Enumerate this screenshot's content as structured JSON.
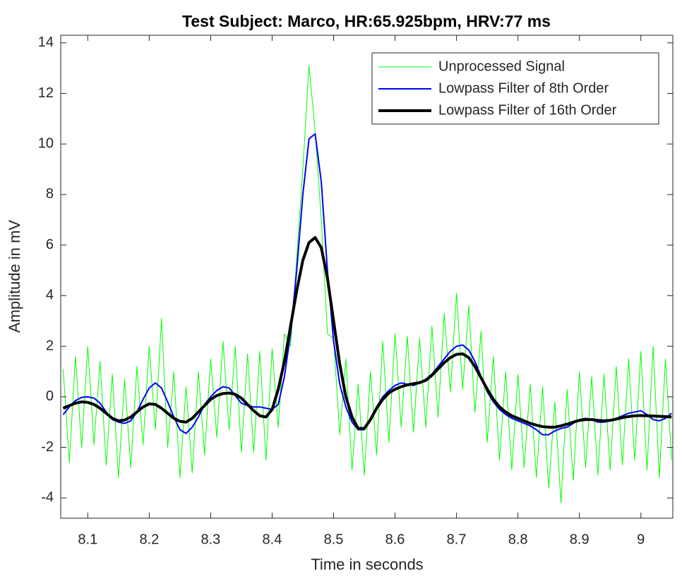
{
  "chart_data": {
    "type": "line",
    "title": "Test Subject: Marco, HR:65.925bpm, HRV:77 ms",
    "x_label": "Time in seconds",
    "y_label": "Amplitude in mV",
    "xlim": [
      8.056,
      9.052
    ],
    "ylim": [
      -4.8,
      14.3
    ],
    "xticks": [
      8.1,
      8.2,
      8.3,
      8.4,
      8.5,
      8.6,
      8.7,
      8.8,
      8.9,
      9
    ],
    "yticks": [
      -4,
      -2,
      0,
      2,
      4,
      6,
      8,
      10,
      12,
      14
    ],
    "grid": false,
    "legend": "northeast",
    "x": [
      8.06,
      8.07,
      8.08,
      8.09,
      8.1,
      8.11,
      8.12,
      8.13,
      8.14,
      8.15,
      8.16,
      8.17,
      8.18,
      8.19,
      8.2,
      8.21,
      8.22,
      8.23,
      8.24,
      8.25,
      8.26,
      8.27,
      8.28,
      8.29,
      8.3,
      8.31,
      8.32,
      8.33,
      8.34,
      8.35,
      8.36,
      8.37,
      8.38,
      8.39,
      8.4,
      8.41,
      8.42,
      8.43,
      8.44,
      8.45,
      8.46,
      8.47,
      8.48,
      8.49,
      8.5,
      8.51,
      8.52,
      8.53,
      8.54,
      8.55,
      8.56,
      8.57,
      8.58,
      8.59,
      8.6,
      8.61,
      8.62,
      8.63,
      8.64,
      8.65,
      8.66,
      8.67,
      8.68,
      8.69,
      8.7,
      8.71,
      8.72,
      8.73,
      8.74,
      8.75,
      8.76,
      8.77,
      8.78,
      8.79,
      8.8,
      8.81,
      8.82,
      8.83,
      8.84,
      8.85,
      8.86,
      8.87,
      8.88,
      8.89,
      8.9,
      8.91,
      8.92,
      8.93,
      8.94,
      8.95,
      8.96,
      8.97,
      8.98,
      8.99,
      9.0,
      9.01,
      9.02,
      9.03,
      9.04,
      9.05
    ],
    "series": [
      {
        "name": "Unprocessed Signal",
        "color": "#00ff00",
        "linewidth": 1,
        "values": [
          1.1,
          -2.6,
          1.6,
          -2.0,
          2.0,
          -1.9,
          1.4,
          -2.7,
          0.9,
          -3.2,
          0.7,
          -2.8,
          1.2,
          -1.9,
          2.0,
          -1.3,
          3.1,
          -2.0,
          1.0,
          -3.2,
          0.4,
          -3.0,
          1.0,
          -2.3,
          1.5,
          -1.6,
          2.2,
          -1.3,
          2.0,
          -2.2,
          1.7,
          -2.2,
          1.8,
          -2.5,
          1.9,
          -1.2,
          2.5,
          2.0,
          5.5,
          9.0,
          13.1,
          10.5,
          7.0,
          2.5,
          2.3,
          -1.5,
          1.5,
          -2.9,
          0.5,
          -3.1,
          1.0,
          -2.3,
          2.2,
          -1.8,
          2.5,
          -1.2,
          2.4,
          -1.4,
          2.3,
          -1.2,
          2.8,
          -0.8,
          3.3,
          0.2,
          4.1,
          0.3,
          3.6,
          -0.6,
          2.6,
          -1.8,
          1.6,
          -2.5,
          1.0,
          -2.9,
          0.9,
          -2.8,
          0.5,
          -3.2,
          0.4,
          -3.6,
          -0.2,
          -4.2,
          0.3,
          -3.3,
          1.0,
          -2.8,
          0.8,
          -3.1,
          0.9,
          -2.9,
          1.2,
          -2.7,
          1.5,
          -2.5,
          1.8,
          -2.9,
          2.0,
          -3.2,
          1.5,
          -2.5
        ]
      },
      {
        "name": "Lowpass Filter of 8th Order",
        "color": "#0000ff",
        "linewidth": 2,
        "values": [
          -0.7,
          -0.4,
          -0.15,
          -0.02,
          0.0,
          -0.05,
          -0.25,
          -0.6,
          -0.9,
          -1.0,
          -1.05,
          -0.95,
          -0.6,
          -0.1,
          0.35,
          0.55,
          0.35,
          -0.2,
          -0.8,
          -1.3,
          -1.45,
          -1.2,
          -0.8,
          -0.3,
          0.0,
          0.25,
          0.4,
          0.35,
          0.05,
          -0.25,
          -0.35,
          -0.4,
          -0.4,
          -0.45,
          -0.5,
          -0.3,
          0.8,
          2.5,
          5.0,
          8.0,
          10.2,
          10.4,
          8.5,
          5.0,
          2.2,
          0.5,
          -0.4,
          -1.0,
          -1.3,
          -1.3,
          -0.9,
          -0.4,
          0.0,
          0.25,
          0.45,
          0.55,
          0.5,
          0.45,
          0.55,
          0.7,
          0.9,
          1.2,
          1.5,
          1.8,
          2.0,
          2.05,
          1.85,
          1.4,
          0.8,
          0.2,
          -0.2,
          -0.5,
          -0.7,
          -0.85,
          -0.95,
          -1.05,
          -1.15,
          -1.3,
          -1.5,
          -1.5,
          -1.35,
          -1.25,
          -1.2,
          -1.05,
          -0.9,
          -0.85,
          -0.9,
          -1.0,
          -1.0,
          -0.95,
          -0.85,
          -0.75,
          -0.65,
          -0.6,
          -0.55,
          -0.7,
          -0.9,
          -0.95,
          -0.85,
          -0.65
        ]
      },
      {
        "name": "Lowpass Filter of 16th Order",
        "color": "#000000",
        "linewidth": 4,
        "values": [
          -0.45,
          -0.35,
          -0.25,
          -0.2,
          -0.22,
          -0.3,
          -0.45,
          -0.65,
          -0.85,
          -0.95,
          -0.92,
          -0.8,
          -0.6,
          -0.4,
          -0.28,
          -0.3,
          -0.45,
          -0.65,
          -0.85,
          -0.97,
          -1.0,
          -0.85,
          -0.6,
          -0.35,
          -0.1,
          0.05,
          0.13,
          0.15,
          0.1,
          -0.05,
          -0.3,
          -0.55,
          -0.75,
          -0.8,
          -0.5,
          0.3,
          1.4,
          2.8,
          4.2,
          5.4,
          6.1,
          6.3,
          5.9,
          4.7,
          3.0,
          1.3,
          0.0,
          -0.8,
          -1.25,
          -1.25,
          -0.9,
          -0.45,
          -0.1,
          0.15,
          0.3,
          0.4,
          0.47,
          0.52,
          0.56,
          0.65,
          0.85,
          1.1,
          1.35,
          1.55,
          1.68,
          1.7,
          1.55,
          1.2,
          0.75,
          0.3,
          -0.1,
          -0.4,
          -0.6,
          -0.75,
          -0.85,
          -0.95,
          -1.05,
          -1.12,
          -1.18,
          -1.2,
          -1.2,
          -1.15,
          -1.08,
          -1.0,
          -0.93,
          -0.9,
          -0.9,
          -0.93,
          -0.95,
          -0.93,
          -0.88,
          -0.82,
          -0.78,
          -0.75,
          -0.74,
          -0.75,
          -0.76,
          -0.77,
          -0.78,
          -0.8
        ]
      }
    ]
  }
}
